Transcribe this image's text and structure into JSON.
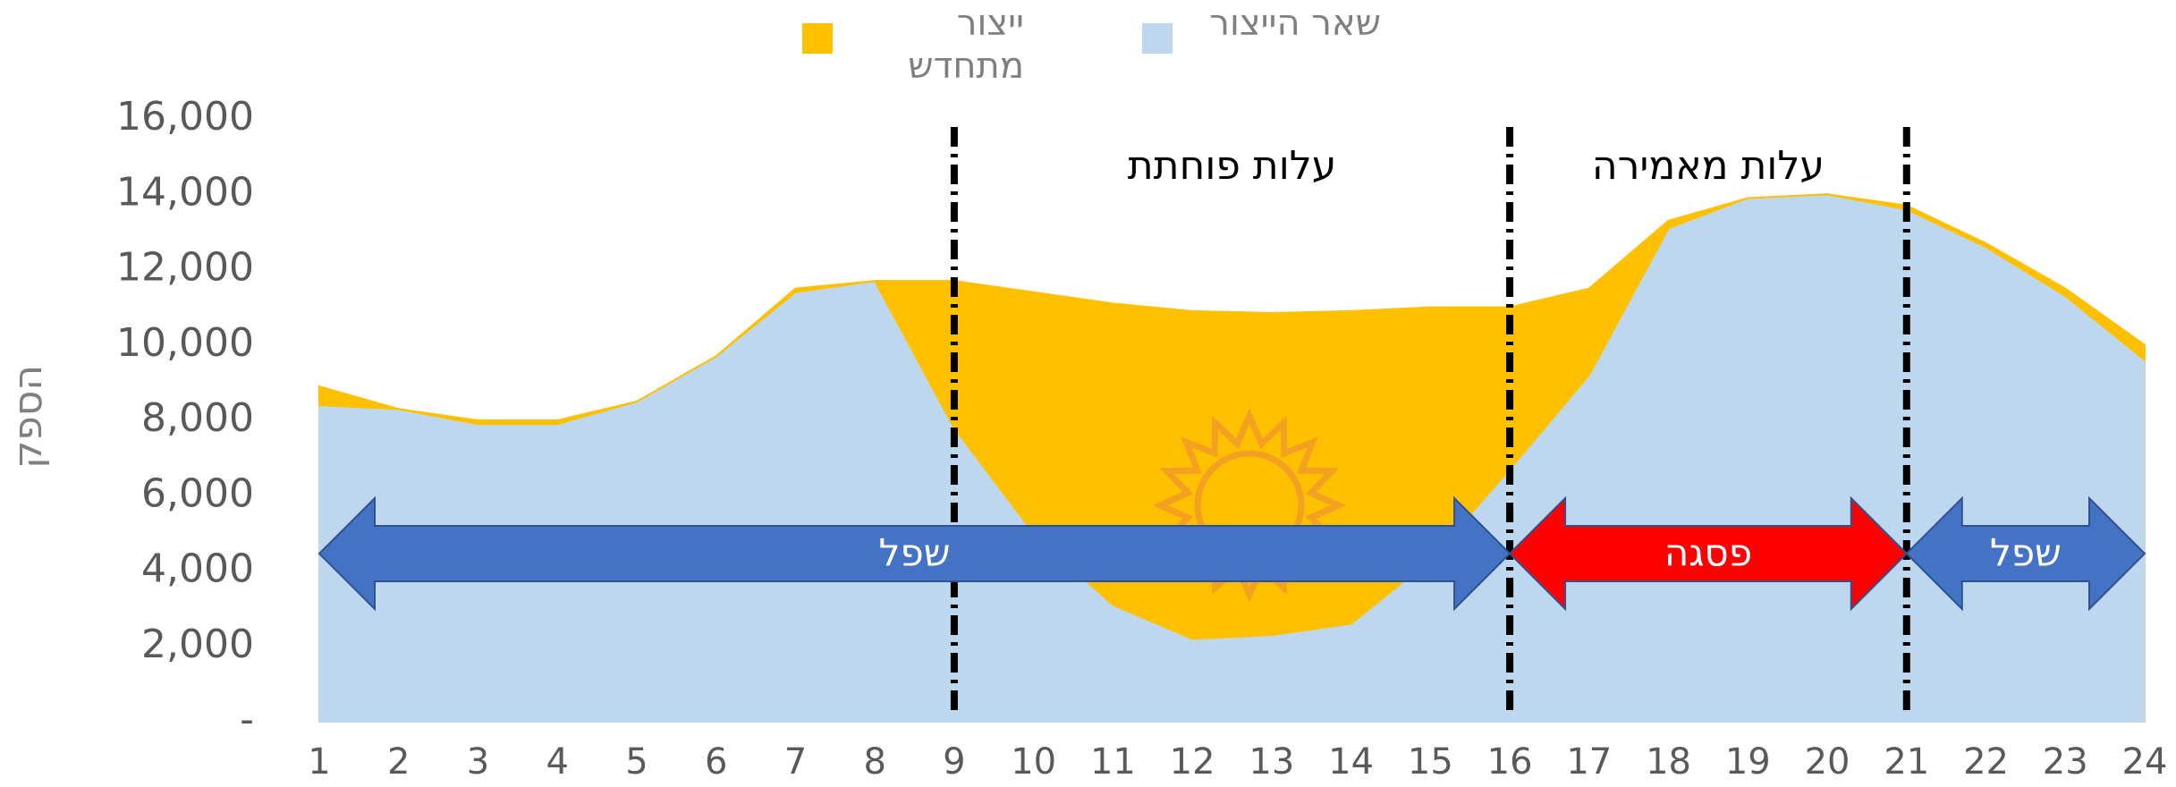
{
  "chart_data": {
    "type": "stacked_area",
    "y_label": "הספק",
    "x": [
      1,
      2,
      3,
      4,
      5,
      6,
      7,
      8,
      9,
      10,
      11,
      12,
      13,
      14,
      15,
      16,
      17,
      18,
      19,
      20,
      21,
      22,
      23,
      24
    ],
    "xlim": [
      1,
      24
    ],
    "xticks": [
      1,
      2,
      3,
      4,
      5,
      6,
      7,
      8,
      9,
      10,
      11,
      12,
      13,
      14,
      15,
      16,
      17,
      18,
      19,
      20,
      21,
      22,
      23,
      24
    ],
    "ylim": [
      0,
      16000
    ],
    "yticks": [
      {
        "value": 0,
        "label": "-"
      },
      {
        "value": 2000,
        "label": "2,000"
      },
      {
        "value": 4000,
        "label": "4,000"
      },
      {
        "value": 6000,
        "label": "6,000"
      },
      {
        "value": 8000,
        "label": "8,000"
      },
      {
        "value": 10000,
        "label": "10,000"
      },
      {
        "value": 12000,
        "label": "12,000"
      },
      {
        "value": 14000,
        "label": "14,000"
      },
      {
        "value": 16000,
        "label": "16,000"
      }
    ],
    "series": [
      {
        "name": "שאר הייצור",
        "color": "#bdd7ee",
        "values": [
          8400,
          8300,
          7900,
          7900,
          8500,
          9700,
          11400,
          11700,
          7800,
          5000,
          3100,
          2200,
          2300,
          2600,
          4300,
          6700,
          9200,
          13100,
          13900,
          14000,
          13600,
          12600,
          11300,
          9600
        ]
      },
      {
        "name": "ייצור מתחדש",
        "color": "#ffc000",
        "values": [
          500,
          0,
          100,
          100,
          0,
          0,
          100,
          0,
          3900,
          6400,
          8000,
          8700,
          8550,
          8300,
          6700,
          4300,
          2300,
          200,
          0,
          0,
          100,
          100,
          200,
          400
        ]
      }
    ],
    "vlines": [
      9,
      16,
      21
    ],
    "cost_labels": [
      {
        "text": "עלות פוחתת",
        "from": 9,
        "to": 16
      },
      {
        "text": "עלות מאמירה",
        "from": 16,
        "to": 21
      }
    ],
    "regions": [
      {
        "label": "שפל",
        "from": 1,
        "to": 16,
        "color": "#4472c4"
      },
      {
        "label": "פסגה",
        "from": 16,
        "to": 21,
        "color": "#ff0000"
      },
      {
        "label": "שפל",
        "from": 21,
        "to": 24,
        "color": "#4472c4"
      }
    ]
  }
}
